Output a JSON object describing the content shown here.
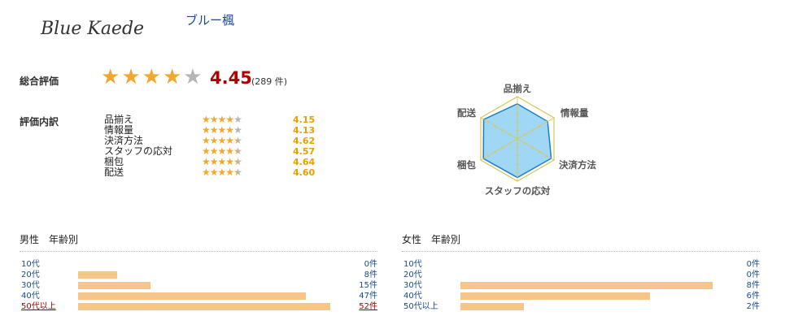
{
  "shop": {
    "logo_text": "Blue Kaede",
    "name": "ブルー楓"
  },
  "overall": {
    "label": "総合評価",
    "score": "4.45",
    "count": "(289 件)",
    "stars_filled": 4,
    "stars_total": 5,
    "star_color": "#f0a830",
    "star_empty_color": "#b5b5b5"
  },
  "breakdown": {
    "label": "評価内訳",
    "items": [
      {
        "name": "品揃え",
        "score": "4.15",
        "stars": 4.15
      },
      {
        "name": "情報量",
        "score": "4.13",
        "stars": 4.13
      },
      {
        "name": "決済方法",
        "score": "4.62",
        "stars": 4.62
      },
      {
        "name": "スタッフの応対",
        "score": "4.57",
        "stars": 4.57
      },
      {
        "name": "梱包",
        "score": "4.64",
        "stars": 4.64
      },
      {
        "name": "配送",
        "score": "4.60",
        "stars": 4.6
      }
    ]
  },
  "radar": {
    "axes": [
      "品揃え",
      "情報量",
      "決済方法",
      "スタッフの応対",
      "梱包",
      "配送"
    ],
    "values": [
      4.15,
      4.13,
      4.62,
      4.57,
      4.64,
      4.6
    ],
    "max": 5,
    "fill_color": "#8ed0f2",
    "stroke_color": "#1a7fc4",
    "grid_color": "#d8c65a"
  },
  "demographics": {
    "male": {
      "title": "男性　年齢別",
      "max": 52,
      "rows": [
        {
          "age": "10代",
          "count": 0,
          "count_label": "0件",
          "highlight": false
        },
        {
          "age": "20代",
          "count": 8,
          "count_label": "8件",
          "highlight": false
        },
        {
          "age": "30代",
          "count": 15,
          "count_label": "15件",
          "highlight": false
        },
        {
          "age": "40代",
          "count": 47,
          "count_label": "47件",
          "highlight": false
        },
        {
          "age": "50代以上",
          "count": 52,
          "count_label": "52件",
          "highlight": true
        }
      ]
    },
    "female": {
      "title": "女性　年齢別",
      "max": 8,
      "rows": [
        {
          "age": "10代",
          "count": 0,
          "count_label": "0件",
          "highlight": false
        },
        {
          "age": "20代",
          "count": 0,
          "count_label": "0件",
          "highlight": false
        },
        {
          "age": "30代",
          "count": 8,
          "count_label": "8件",
          "highlight": false
        },
        {
          "age": "40代",
          "count": 6,
          "count_label": "6件",
          "highlight": false
        },
        {
          "age": "50代以上",
          "count": 2,
          "count_label": "2件",
          "highlight": false
        }
      ]
    }
  }
}
